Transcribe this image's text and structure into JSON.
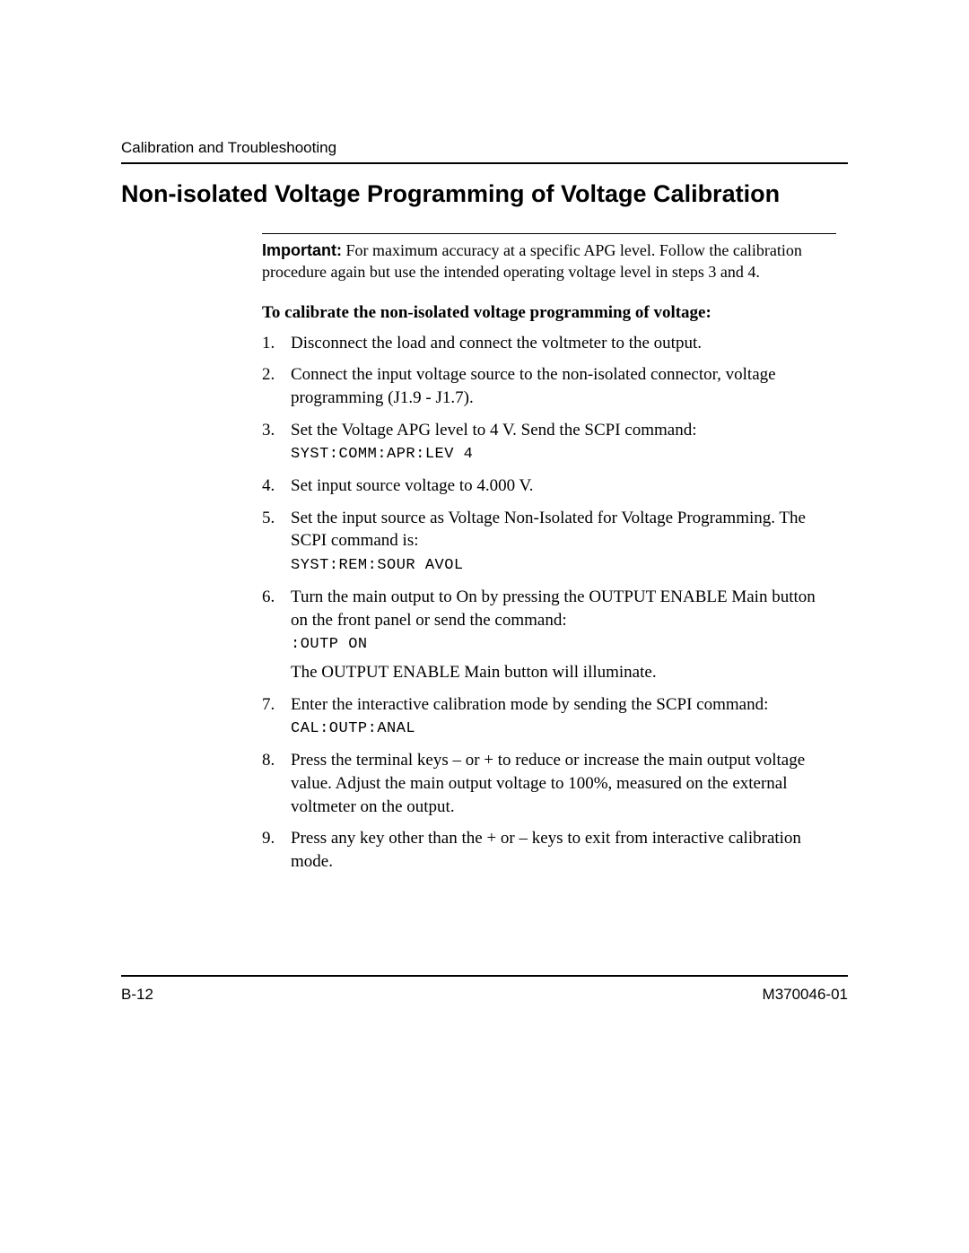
{
  "header": {
    "running_head": "Calibration and Troubleshooting"
  },
  "title": "Non-isolated Voltage Programming of Voltage Calibration",
  "important": {
    "label": "Important:",
    "text": "For maximum accuracy at a specific APG level. Follow the calibration procedure again but use the intended operating voltage level in steps 3 and 4."
  },
  "sub_head": "To calibrate the non-isolated voltage programming of voltage:",
  "steps": [
    {
      "text": "Disconnect the load and connect the voltmeter to the output."
    },
    {
      "text": "Connect the input voltage source to the non-isolated connector, voltage programming (J1.9 - J1.7)."
    },
    {
      "text": "Set the Voltage APG level to 4 V. Send the SCPI command:",
      "code": "SYST:COMM:APR:LEV  4"
    },
    {
      "text": "Set input source voltage to 4.000 V."
    },
    {
      "text": "Set the input source as Voltage Non-Isolated for Voltage Programming. The SCPI command is:",
      "code": "SYST:REM:SOUR  AVOL"
    },
    {
      "text": "Turn the main output to On by pressing the OUTPUT ENABLE Main button on the front panel or send the command:",
      "code": ":OUTP ON",
      "after": "The OUTPUT ENABLE Main button will illuminate."
    },
    {
      "text": "Enter the interactive calibration mode by sending the SCPI command:",
      "code": "CAL:OUTP:ANAL"
    },
    {
      "text": "Press the terminal keys – or + to reduce or increase the main output voltage value. Adjust the main output voltage to 100%, measured on the external voltmeter on the output."
    },
    {
      "text": "Press any key other than the + or – keys to exit from interactive calibration mode."
    }
  ],
  "footer": {
    "page_num": "B-12",
    "doc_num": "M370046-01"
  }
}
